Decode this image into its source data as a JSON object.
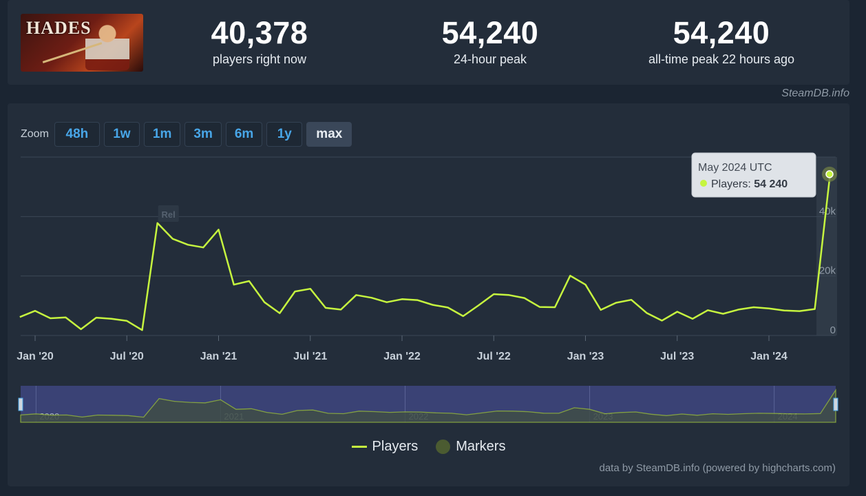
{
  "game": {
    "logo_text": "HADES",
    "logo_icon": "hades-game-logo"
  },
  "stats": [
    {
      "value": "40,378",
      "label": "players right now"
    },
    {
      "value": "54,240",
      "label": "24-hour peak"
    },
    {
      "value": "54,240",
      "label": "all-time peak 22 hours ago"
    }
  ],
  "attribution_top": "SteamDB.info",
  "zoom": {
    "label": "Zoom",
    "buttons": [
      "48h",
      "1w",
      "1m",
      "3m",
      "6m",
      "1y",
      "max"
    ],
    "active": "max"
  },
  "tooltip": {
    "date": "May 2024 UTC",
    "series": "Players",
    "value": "54 240"
  },
  "marker_label": "Rel",
  "legend": {
    "players": "Players",
    "markers": "Markers"
  },
  "credit": "data by SteamDB.info (powered by highcharts.com)",
  "colors": {
    "line": "#c6f53f",
    "accent": "#48a6e8",
    "panel": "#232d3a"
  },
  "chart_data": {
    "type": "line",
    "series": [
      {
        "name": "Players",
        "values": [
          6200,
          8300,
          5800,
          6100,
          2100,
          6000,
          5600,
          4900,
          1800,
          37800,
          32500,
          30500,
          29600,
          35600,
          17100,
          18300,
          11200,
          7500,
          14800,
          15700,
          9300,
          8700,
          13600,
          12700,
          11200,
          12200,
          11900,
          10300,
          9400,
          6500,
          10100,
          13900,
          13600,
          12600,
          9600,
          9500,
          20100,
          17100,
          8600,
          11000,
          12000,
          7600,
          5000,
          8000,
          5600,
          8500,
          7300,
          8700,
          9500,
          9100,
          8400,
          8200,
          8900,
          54240
        ]
      }
    ],
    "x_start": "2019-12",
    "x_step": "1 month",
    "x_ticks": [
      "Jan '20",
      "Jul '20",
      "Jan '21",
      "Jul '21",
      "Jan '22",
      "Jul '22",
      "Jan '23",
      "Jul '23",
      "Jan '24"
    ],
    "x_tick_dates": [
      "2020-01",
      "2020-07",
      "2021-01",
      "2021-07",
      "2022-01",
      "2022-07",
      "2023-01",
      "2023-07",
      "2024-01"
    ],
    "y_ticks": [
      0,
      20000,
      40000
    ],
    "y_tick_labels": [
      "0",
      "20k",
      "40k"
    ],
    "ylim": [
      0,
      60000
    ],
    "navigator_labels": [
      "2020",
      "2021",
      "2022",
      "2023",
      "2024"
    ],
    "grid": true,
    "legend_position": "bottom"
  }
}
